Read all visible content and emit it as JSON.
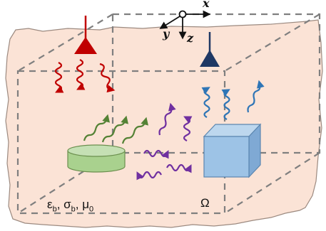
{
  "axes": {
    "x": "x",
    "y": "y",
    "z": "z"
  },
  "medium": {
    "eps": "ε",
    "eps_sub": "b",
    "sigma": "σ",
    "sigma_sub": "b",
    "mu": "μ",
    "mu_sub": "0"
  },
  "domain_label": "Ω",
  "colors": {
    "background": "#fbe3d6",
    "transmitter": "#c00000",
    "receiver": "#1f3864",
    "wave_green": "#548235",
    "wave_purple": "#7030a0",
    "wave_blue": "#2e75b6",
    "cylinder": "#a9d18e",
    "cube": "#9dc3e6",
    "box_edges": "#7f7f7f"
  },
  "icons": [
    "transmitter-antenna-icon",
    "receiver-antenna-icon",
    "axes-icon",
    "cylinder-object-icon",
    "cube-object-icon"
  ]
}
